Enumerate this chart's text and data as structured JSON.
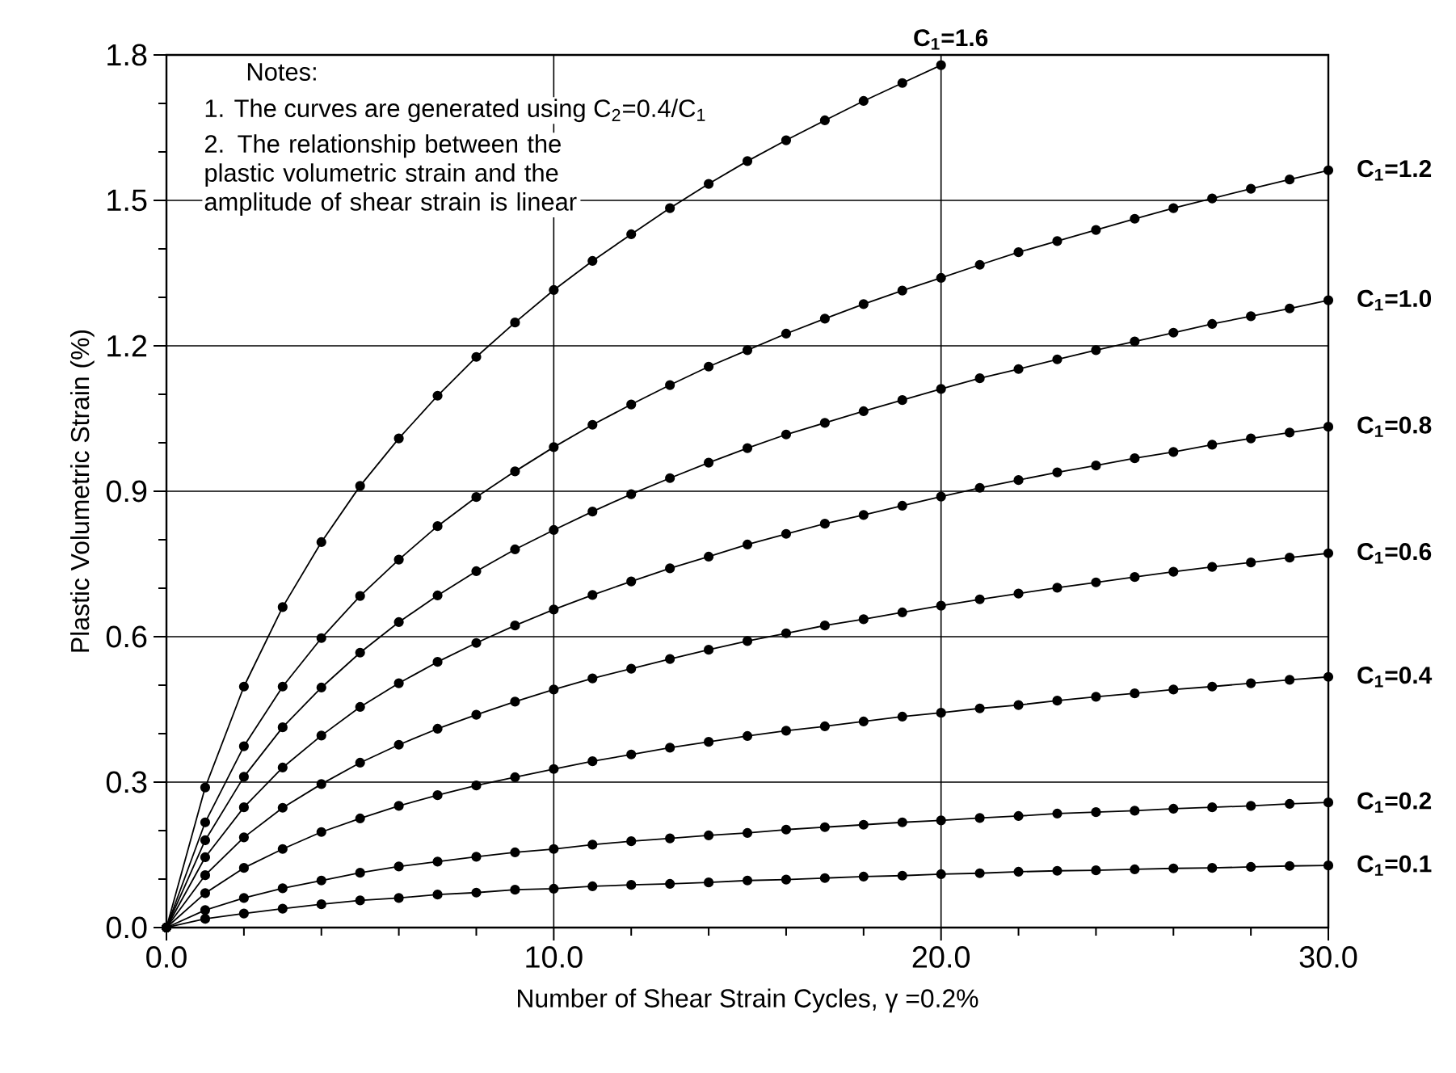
{
  "chart_data": {
    "type": "line",
    "xlabel": "Number of Shear Strain Cycles, γ =0.2%",
    "ylabel": "Plastic Volumetric Strain (%)",
    "x": [
      0,
      1,
      2,
      3,
      4,
      5,
      6,
      7,
      8,
      9,
      10,
      11,
      12,
      13,
      14,
      15,
      16,
      17,
      18,
      19,
      20,
      21,
      22,
      23,
      24,
      25,
      26,
      27,
      28,
      29,
      30
    ],
    "series": [
      {
        "name": "C$_{1}$=1.6",
        "color": "#000000",
        "x": [
          0,
          1,
          2,
          3,
          4,
          5,
          6,
          7,
          8,
          9,
          10,
          11,
          12,
          13,
          14,
          15,
          16,
          17,
          18,
          19,
          20
        ],
        "values": [
          0,
          0.289,
          0.497,
          0.661,
          0.795,
          0.911,
          1.009,
          1.097,
          1.177,
          1.248,
          1.315,
          1.375,
          1.43,
          1.484,
          1.534,
          1.581,
          1.624,
          1.665,
          1.705,
          1.742,
          1.779
        ]
      },
      {
        "name": "C$_{1}$=1.2",
        "color": "#000000",
        "values": [
          0,
          0.217,
          0.374,
          0.497,
          0.597,
          0.684,
          0.759,
          0.828,
          0.888,
          0.941,
          0.991,
          1.037,
          1.079,
          1.119,
          1.157,
          1.191,
          1.225,
          1.256,
          1.286,
          1.314,
          1.34,
          1.367,
          1.393,
          1.416,
          1.439,
          1.462,
          1.484,
          1.504,
          1.524,
          1.543,
          1.562
        ]
      },
      {
        "name": "C$_{1}$=1.0",
        "color": "#000000",
        "values": [
          0,
          0.18,
          0.311,
          0.413,
          0.495,
          0.567,
          0.63,
          0.685,
          0.735,
          0.78,
          0.82,
          0.858,
          0.894,
          0.927,
          0.959,
          0.989,
          1.017,
          1.041,
          1.065,
          1.088,
          1.111,
          1.133,
          1.152,
          1.172,
          1.191,
          1.209,
          1.227,
          1.245,
          1.261,
          1.277,
          1.294
        ]
      },
      {
        "name": "C$_{1}$=0.8",
        "color": "#000000",
        "values": [
          0,
          0.145,
          0.248,
          0.33,
          0.396,
          0.455,
          0.504,
          0.548,
          0.587,
          0.623,
          0.656,
          0.686,
          0.714,
          0.741,
          0.765,
          0.79,
          0.812,
          0.833,
          0.851,
          0.87,
          0.889,
          0.907,
          0.923,
          0.939,
          0.953,
          0.968,
          0.981,
          0.996,
          1.009,
          1.021,
          1.033
        ]
      },
      {
        "name": "C$_{1}$=0.6",
        "color": "#000000",
        "values": [
          0,
          0.108,
          0.186,
          0.247,
          0.296,
          0.34,
          0.377,
          0.41,
          0.439,
          0.466,
          0.491,
          0.514,
          0.534,
          0.554,
          0.573,
          0.591,
          0.607,
          0.623,
          0.636,
          0.65,
          0.664,
          0.677,
          0.689,
          0.701,
          0.712,
          0.723,
          0.734,
          0.744,
          0.753,
          0.763,
          0.772
        ]
      },
      {
        "name": "C$_{1}$=0.4",
        "color": "#000000",
        "values": [
          0,
          0.071,
          0.123,
          0.162,
          0.197,
          0.225,
          0.251,
          0.273,
          0.293,
          0.31,
          0.327,
          0.343,
          0.357,
          0.371,
          0.383,
          0.395,
          0.406,
          0.415,
          0.425,
          0.435,
          0.443,
          0.452,
          0.459,
          0.468,
          0.476,
          0.483,
          0.491,
          0.497,
          0.504,
          0.511,
          0.517
        ]
      },
      {
        "name": "C$_{1}$=0.2",
        "color": "#000000",
        "values": [
          0,
          0.036,
          0.061,
          0.081,
          0.097,
          0.113,
          0.126,
          0.136,
          0.146,
          0.155,
          0.162,
          0.171,
          0.178,
          0.184,
          0.19,
          0.195,
          0.202,
          0.207,
          0.212,
          0.217,
          0.221,
          0.226,
          0.23,
          0.235,
          0.238,
          0.241,
          0.245,
          0.248,
          0.251,
          0.255,
          0.258
        ]
      },
      {
        "name": "C$_{1}$=0.1",
        "color": "#000000",
        "values": [
          0,
          0.018,
          0.029,
          0.039,
          0.048,
          0.056,
          0.061,
          0.068,
          0.072,
          0.078,
          0.08,
          0.085,
          0.088,
          0.09,
          0.093,
          0.097,
          0.099,
          0.102,
          0.105,
          0.107,
          0.11,
          0.112,
          0.115,
          0.117,
          0.118,
          0.12,
          0.122,
          0.123,
          0.125,
          0.127,
          0.128
        ]
      }
    ],
    "xlim": [
      0,
      30
    ],
    "ylim": [
      0,
      1.8
    ],
    "xticks": [
      {
        "value": 0,
        "label": "0.0"
      },
      {
        "value": 10,
        "label": "10.0"
      },
      {
        "value": 20,
        "label": "20.0"
      },
      {
        "value": 30,
        "label": "30.0"
      }
    ],
    "yticks": [
      {
        "value": 0,
        "label": "0.0"
      },
      {
        "value": 0.3,
        "label": "0.3"
      },
      {
        "value": 0.6,
        "label": "0.6"
      },
      {
        "value": 0.9,
        "label": "0.9"
      },
      {
        "value": 1.2,
        "label": "1.2"
      },
      {
        "value": 1.5,
        "label": "1.5"
      },
      {
        "value": 1.8,
        "label": "1.8"
      }
    ],
    "grid": true,
    "marker": "circle",
    "line_style": "solid",
    "annotations": [
      "Notes:",
      "1. The curves are generated using C$_{2}$=0.4/C$_{1}$",
      "2. The relationship between the plastic volumetric strain and the amplitude of shear strain is linear"
    ]
  }
}
